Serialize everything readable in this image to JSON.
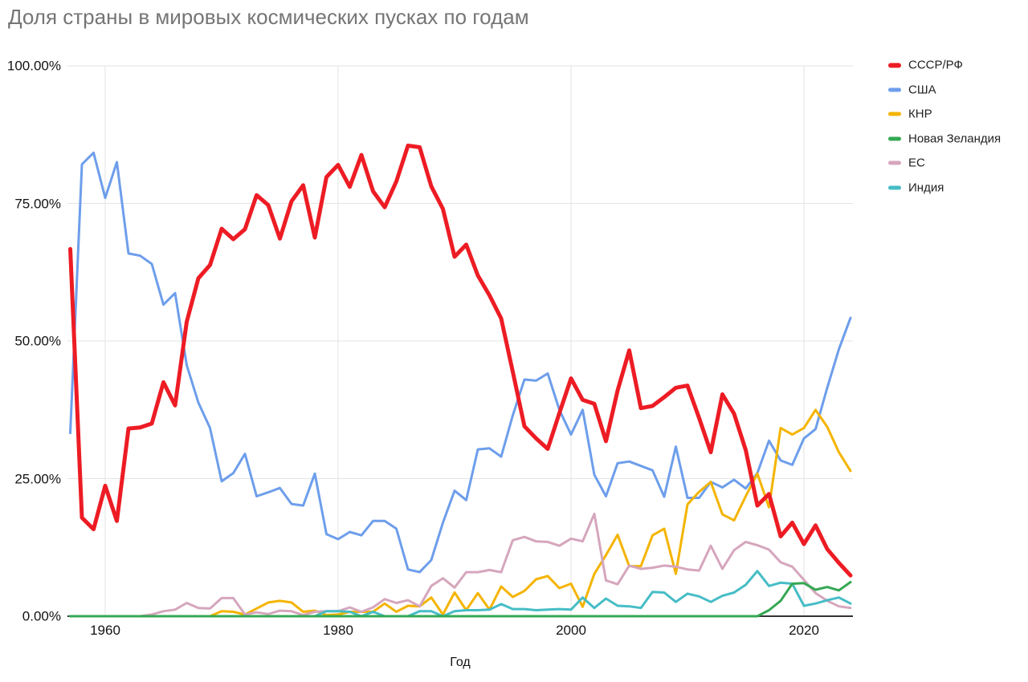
{
  "title": "Доля страны в мировых космических пусках по годам",
  "colors": {
    "ussr_rf": "#ed1c24",
    "usa": "#6d9eeb",
    "china": "#f4b400",
    "new_zealand": "#34a853",
    "eu": "#d5a6bd",
    "india": "#46bdc6",
    "gridline": "#e3e3e3",
    "axis_line": "#333333",
    "title_text": "#757575",
    "tick_text": "#131313"
  },
  "chart_data": {
    "type": "line",
    "title": "Доля страны в мировых космических пусках по годам",
    "xlabel": "Год",
    "ylabel": "",
    "ylim": [
      0,
      100
    ],
    "grid": true,
    "legend_position": "right",
    "x_ticks": [
      1960,
      1980,
      2000,
      2020
    ],
    "y_tick_values": [
      0,
      25,
      50,
      75,
      100
    ],
    "y_ticks": [
      "0.00%",
      "25.00%",
      "50.00%",
      "75.00%",
      "100.00%"
    ],
    "x": [
      1957,
      1958,
      1959,
      1960,
      1961,
      1962,
      1963,
      1964,
      1965,
      1966,
      1967,
      1968,
      1969,
      1970,
      1971,
      1972,
      1973,
      1974,
      1975,
      1976,
      1977,
      1978,
      1979,
      1980,
      1981,
      1982,
      1983,
      1984,
      1985,
      1986,
      1987,
      1988,
      1989,
      1990,
      1991,
      1992,
      1993,
      1994,
      1995,
      1996,
      1997,
      1998,
      1999,
      2000,
      2001,
      2002,
      2003,
      2004,
      2005,
      2006,
      2007,
      2008,
      2009,
      2010,
      2011,
      2012,
      2013,
      2014,
      2015,
      2016,
      2017,
      2018,
      2019,
      2020,
      2021,
      2022,
      2023,
      2024
    ],
    "series": [
      {
        "name": "СССР/РФ",
        "color": "#ed1c24",
        "line_width": 5,
        "values": [
          66.7,
          17.9,
          15.8,
          23.7,
          17.3,
          34.1,
          34.3,
          35.0,
          42.5,
          38.3,
          53.5,
          61.4,
          63.8,
          70.4,
          68.5,
          70.3,
          76.5,
          74.7,
          68.6,
          75.4,
          78.3,
          68.8,
          79.8,
          82.0,
          78.0,
          83.8,
          77.2,
          74.3,
          79.0,
          85.5,
          85.2,
          78.1,
          74.0,
          65.3,
          67.5,
          61.9,
          58.3,
          54.1,
          44.4,
          34.5,
          32.3,
          30.4,
          36.9,
          43.2,
          39.3,
          38.6,
          31.8,
          41.0,
          48.3,
          37.8,
          38.2,
          39.8,
          41.5,
          41.9,
          36.0,
          29.8,
          40.3,
          36.8,
          30.2,
          20.1,
          22.2,
          14.5,
          17.0,
          13.1,
          16.5,
          12.2,
          9.7,
          7.4
        ]
      },
      {
        "name": "США",
        "color": "#6d9eeb",
        "line_width": 3,
        "values": [
          33.3,
          82.1,
          84.2,
          76.0,
          82.5,
          65.9,
          65.5,
          64.0,
          56.6,
          58.7,
          45.6,
          38.8,
          34.2,
          24.5,
          26.0,
          29.5,
          21.8,
          22.5,
          23.3,
          20.4,
          20.1,
          25.9,
          14.9,
          14.0,
          15.3,
          14.7,
          17.3,
          17.3,
          15.9,
          8.5,
          8.0,
          10.2,
          17.0,
          22.8,
          21.1,
          30.3,
          30.5,
          29.0,
          36.5,
          43.0,
          42.8,
          44.1,
          37.5,
          33.0,
          37.5,
          25.7,
          21.8,
          27.8,
          28.1,
          27.3,
          26.5,
          21.7,
          30.8,
          21.5,
          21.5,
          24.4,
          23.4,
          24.8,
          23.2,
          26.0,
          31.9,
          28.3,
          27.5,
          32.3,
          34.0,
          41.5,
          48.5,
          54.2
        ]
      },
      {
        "name": "КНР",
        "color": "#f4b400",
        "line_width": 3,
        "values": [
          0,
          0,
          0,
          0,
          0,
          0,
          0,
          0,
          0,
          0,
          0,
          0,
          0,
          0.9,
          0.8,
          0.3,
          1.4,
          2.5,
          2.8,
          2.5,
          0.8,
          1.0,
          0.2,
          0.3,
          0.8,
          0.8,
          0.8,
          2.3,
          0.8,
          1.9,
          1.8,
          3.4,
          0.3,
          4.3,
          1.1,
          4.2,
          1.2,
          5.4,
          3.5,
          4.6,
          6.7,
          7.3,
          5.1,
          5.9,
          1.7,
          7.7,
          11.1,
          14.8,
          9.1,
          9.1,
          14.7,
          15.9,
          7.7,
          20.3,
          22.6,
          24.4,
          18.5,
          17.4,
          21.8,
          25.9,
          19.8,
          34.2,
          33.0,
          34.2,
          37.5,
          34.4,
          29.8,
          26.4
        ]
      },
      {
        "name": "Новая Зеландия",
        "color": "#34a853",
        "line_width": 3,
        "values": [
          0,
          0,
          0,
          0,
          0,
          0,
          0,
          0,
          0,
          0,
          0,
          0,
          0,
          0,
          0,
          0,
          0,
          0,
          0,
          0,
          0,
          0,
          0,
          0,
          0,
          0,
          0,
          0,
          0,
          0,
          0,
          0,
          0,
          0,
          0,
          0,
          0,
          0,
          0,
          0,
          0,
          0,
          0,
          0,
          0,
          0,
          0,
          0,
          0,
          0,
          0,
          0,
          0,
          0,
          0,
          0,
          0,
          0,
          0,
          0,
          1.1,
          2.8,
          5.9,
          6.0,
          4.8,
          5.3,
          4.7,
          6.2
        ]
      },
      {
        "name": "ЕС",
        "color": "#d5a6bd",
        "line_width": 3,
        "values": [
          0,
          0,
          0,
          0,
          0,
          0,
          0,
          0.3,
          0.9,
          1.2,
          2.4,
          1.5,
          1.4,
          3.3,
          3.3,
          0.3,
          0.7,
          0.4,
          1.0,
          0.9,
          0.2,
          0.8,
          0.9,
          0.9,
          1.6,
          0.8,
          1.6,
          3.1,
          2.4,
          2.9,
          1.8,
          5.5,
          6.9,
          5.2,
          8.0,
          8.0,
          8.4,
          8.0,
          13.8,
          14.4,
          13.6,
          13.5,
          12.8,
          14.1,
          13.6,
          18.6,
          6.5,
          5.8,
          9.2,
          8.6,
          8.8,
          9.2,
          9.0,
          8.5,
          8.3,
          12.8,
          8.6,
          12.0,
          13.5,
          12.9,
          12.1,
          9.8,
          9.0,
          6.6,
          4.2,
          2.8,
          1.8,
          1.5
        ]
      },
      {
        "name": "Индия",
        "color": "#46bdc6",
        "line_width": 3,
        "values": [
          0,
          0,
          0,
          0,
          0,
          0,
          0,
          0,
          0,
          0,
          0,
          0,
          0,
          0,
          0,
          0,
          0,
          0,
          0,
          0,
          0,
          0,
          0.9,
          0.9,
          0.8,
          0,
          0.8,
          0,
          0,
          0,
          0.9,
          0.9,
          0,
          0.9,
          1.1,
          1.1,
          1.2,
          2.2,
          1.3,
          1.3,
          1.1,
          1.2,
          1.3,
          1.2,
          3.4,
          1.5,
          3.2,
          1.9,
          1.8,
          1.5,
          4.4,
          4.3,
          2.6,
          4.1,
          3.6,
          2.6,
          3.7,
          4.3,
          5.7,
          8.2,
          5.5,
          6.1,
          5.9,
          1.9,
          2.3,
          2.9,
          3.4,
          2.3
        ]
      }
    ]
  }
}
